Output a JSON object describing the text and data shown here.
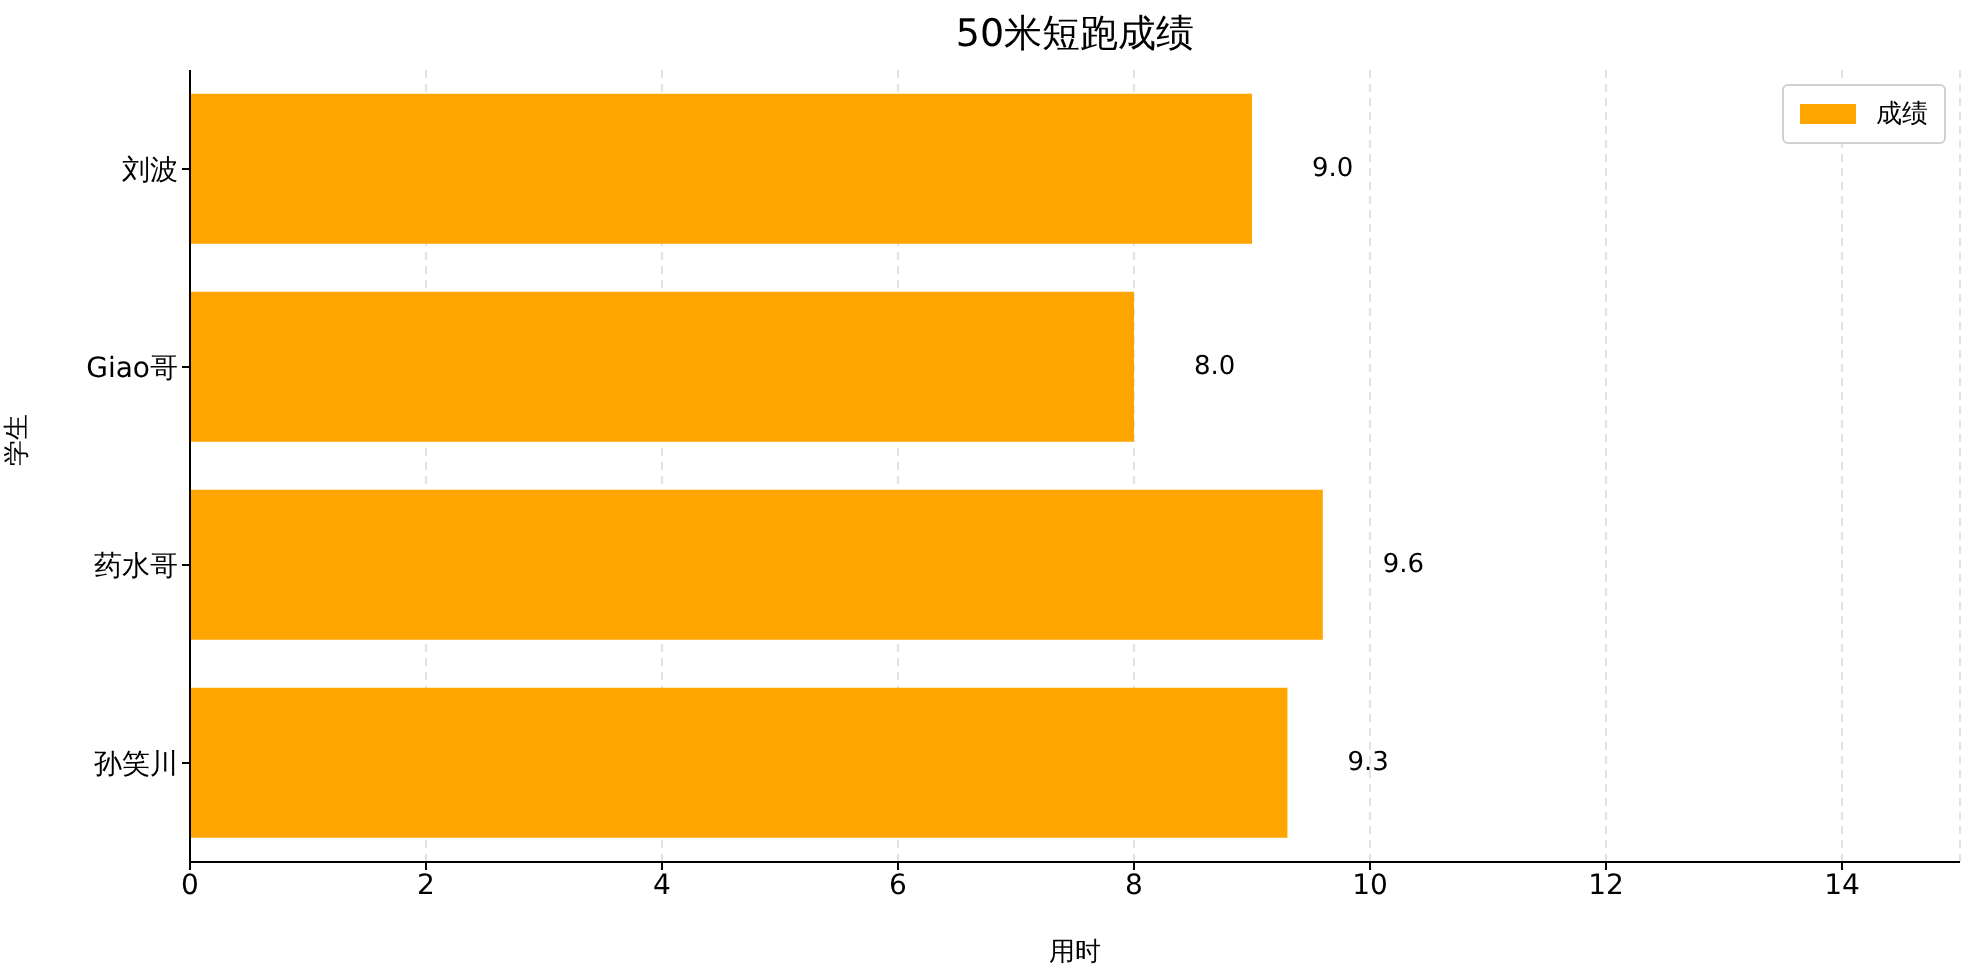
{
  "chart_data": {
    "type": "bar",
    "orientation": "horizontal",
    "title": "50米短跑成绩",
    "xlabel": "用时",
    "ylabel": "学生",
    "categories": [
      "刘波",
      "Giao哥",
      "药水哥",
      "孙笑川"
    ],
    "series": [
      {
        "name": "成绩",
        "color": "#ffa500",
        "values": [
          9.0,
          8.0,
          9.6,
          9.3
        ],
        "value_labels": [
          "9.0",
          "8.0",
          "9.6",
          "9.3"
        ]
      }
    ],
    "xlim": [
      0,
      15
    ],
    "xticks": [
      0,
      2,
      4,
      6,
      8,
      10,
      12,
      14
    ],
    "grid": "x",
    "legend": "top right"
  }
}
